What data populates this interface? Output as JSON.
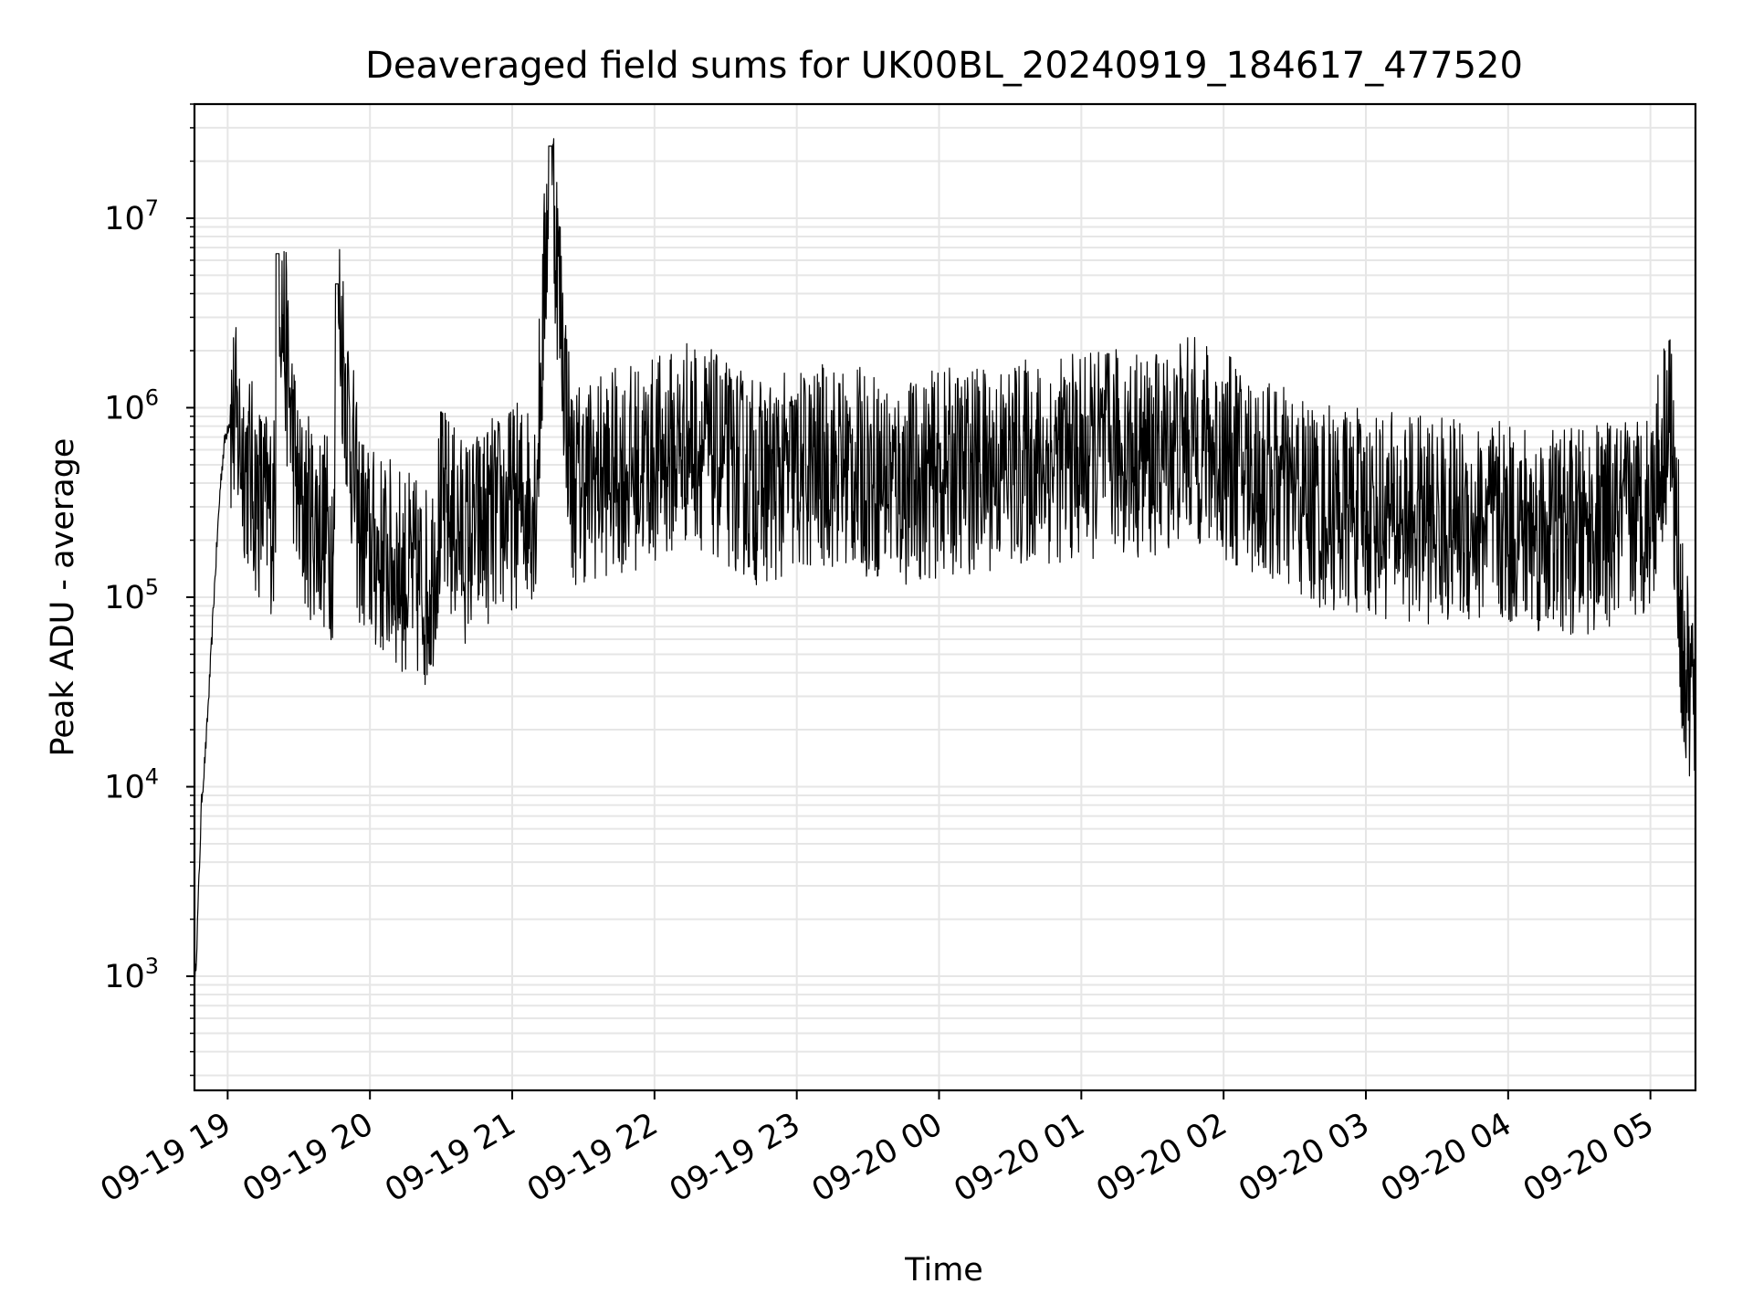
{
  "chart_data": {
    "type": "line",
    "title": "Deaveraged field sums for UK00BL_20240919_184617_477520",
    "xlabel": "Time",
    "ylabel": "Peak ADU - average",
    "y_scale": "log",
    "ylim": [
      250,
      40000000
    ],
    "xlim": [
      "2024-09-19 18:46",
      "2024-09-20 05:19"
    ],
    "x_ticks": [
      "09-19 19",
      "09-19 20",
      "09-19 21",
      "09-19 22",
      "09-19 23",
      "09-20 00",
      "09-20 01",
      "09-20 02",
      "09-20 03",
      "09-20 04",
      "09-20 05"
    ],
    "y_ticks": [
      {
        "base": "10",
        "exp": "3",
        "value": 1000
      },
      {
        "base": "10",
        "exp": "4",
        "value": 10000
      },
      {
        "base": "10",
        "exp": "5",
        "value": 100000
      },
      {
        "base": "10",
        "exp": "6",
        "value": 1000000
      },
      {
        "base": "10",
        "exp": "7",
        "value": 10000000
      }
    ],
    "grid": true,
    "line_color": "#000000",
    "grid_color": "#e6e6e6",
    "series": [
      {
        "x": [
          "2024-09-19 18:46",
          "2024-09-19 18:47",
          "2024-09-19 18:48",
          "2024-09-19 18:49",
          "2024-09-19 18:50",
          "2024-09-19 18:51",
          "2024-09-19 18:52",
          "2024-09-19 18:53",
          "2024-09-19 18:54",
          "2024-09-19 18:55",
          "2024-09-19 18:56",
          "2024-09-19 18:57",
          "2024-09-19 18:58",
          "2024-09-19 18:59",
          "2024-09-19 19:00",
          "2024-09-19 19:02",
          "2024-09-19 19:04",
          "2024-09-19 19:08",
          "2024-09-19 19:12",
          "2024-09-19 19:16",
          "2024-09-19 19:20",
          "2024-09-19 19:21",
          "2024-09-19 19:30",
          "2024-09-19 19:38",
          "2024-09-19 19:45",
          "2024-09-19 19:46",
          "2024-09-19 19:55",
          "2024-09-19 20:00",
          "2024-09-19 20:10",
          "2024-09-19 20:17",
          "2024-09-19 20:25",
          "2024-09-19 20:30",
          "2024-09-19 20:40",
          "2024-09-19 20:50",
          "2024-09-19 21:00",
          "2024-09-19 21:10",
          "2024-09-19 21:16",
          "2024-09-19 21:25",
          "2024-09-19 21:40",
          "2024-09-19 21:55",
          "2024-09-19 22:10",
          "2024-09-19 22:15",
          "2024-09-19 22:30",
          "2024-09-19 22:45",
          "2024-09-19 23:00",
          "2024-09-19 23:15",
          "2024-09-19 23:30",
          "2024-09-19 23:45",
          "2024-09-20 00:00",
          "2024-09-20 00:30",
          "2024-09-20 01:00",
          "2024-09-20 01:15",
          "2024-09-20 01:30",
          "2024-09-20 01:45",
          "2024-09-20 02:00",
          "2024-09-20 02:20",
          "2024-09-20 02:40",
          "2024-09-20 03:00",
          "2024-09-20 03:20",
          "2024-09-20 03:40",
          "2024-09-20 03:55",
          "2024-09-20 04:10",
          "2024-09-20 04:30",
          "2024-09-20 04:50",
          "2024-09-20 05:00",
          "2024-09-20 05:05",
          "2024-09-20 05:08",
          "2024-09-20 05:10",
          "2024-09-20 05:12",
          "2024-09-20 05:14",
          "2024-09-20 05:19"
        ],
        "y": [
          800,
          1500,
          3500,
          8500,
          12000,
          18000,
          30000,
          50000,
          90000,
          150000,
          250000,
          400000,
          550000,
          700000,
          800000,
          900000,
          750000,
          500000,
          350000,
          300000,
          280000,
          6500000,
          300000,
          250000,
          200000,
          4500000,
          250000,
          180000,
          150000,
          130000,
          110000,
          300000,
          200000,
          250000,
          300000,
          350000,
          24000000,
          400000,
          450000,
          500000,
          600000,
          700000,
          500000,
          400000,
          450000,
          500000,
          450000,
          400000,
          450000,
          500000,
          550000,
          600000,
          550000,
          700000,
          550000,
          400000,
          300000,
          280000,
          260000,
          250000,
          240000,
          230000,
          220000,
          250000,
          300000,
          600000,
          1200000,
          300000,
          150000,
          40000,
          30000
        ]
      }
    ]
  }
}
